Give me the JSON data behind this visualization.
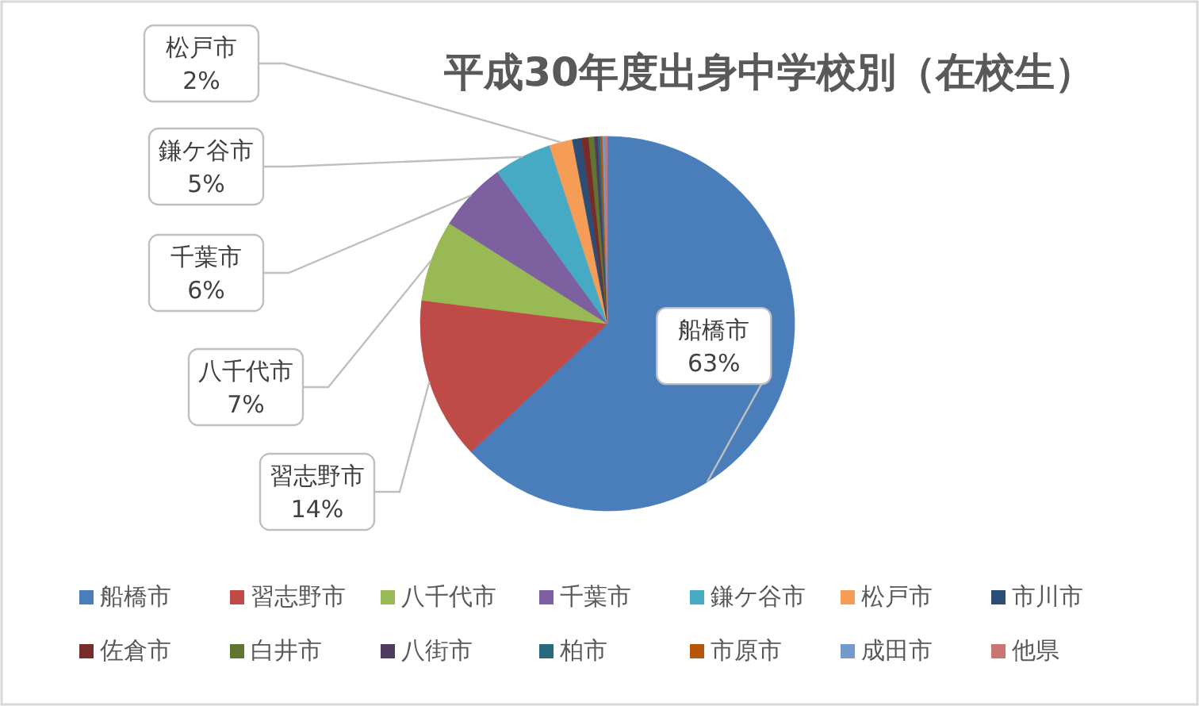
{
  "chart_data": {
    "type": "pie",
    "title": "平成30年度出身中学校別（在校生）",
    "categories": [
      "船橋市",
      "習志野市",
      "八千代市",
      "千葉市",
      "鎌ケ谷市",
      "松戸市",
      "市川市",
      "佐倉市",
      "白井市",
      "八街市",
      "柏市",
      "市原市",
      "成田市",
      "他県"
    ],
    "values": [
      63,
      14,
      7,
      6,
      5,
      2,
      0.8,
      0.6,
      0.5,
      0.3,
      0.2,
      0.2,
      0.2,
      0.2
    ],
    "value_labels": [
      "63%",
      "14%",
      "7%",
      "6%",
      "5%",
      "2%",
      null,
      null,
      null,
      null,
      null,
      null,
      null,
      null
    ],
    "colors": [
      "#4a7ebb",
      "#be4b48",
      "#98b954",
      "#7d60a0",
      "#46aac5",
      "#f59d56",
      "#2c4d75",
      "#772c2a",
      "#5f7530",
      "#4d3b62",
      "#276a7c",
      "#b65708",
      "#729aca",
      "#cd7371"
    ],
    "legend": "bottom"
  }
}
